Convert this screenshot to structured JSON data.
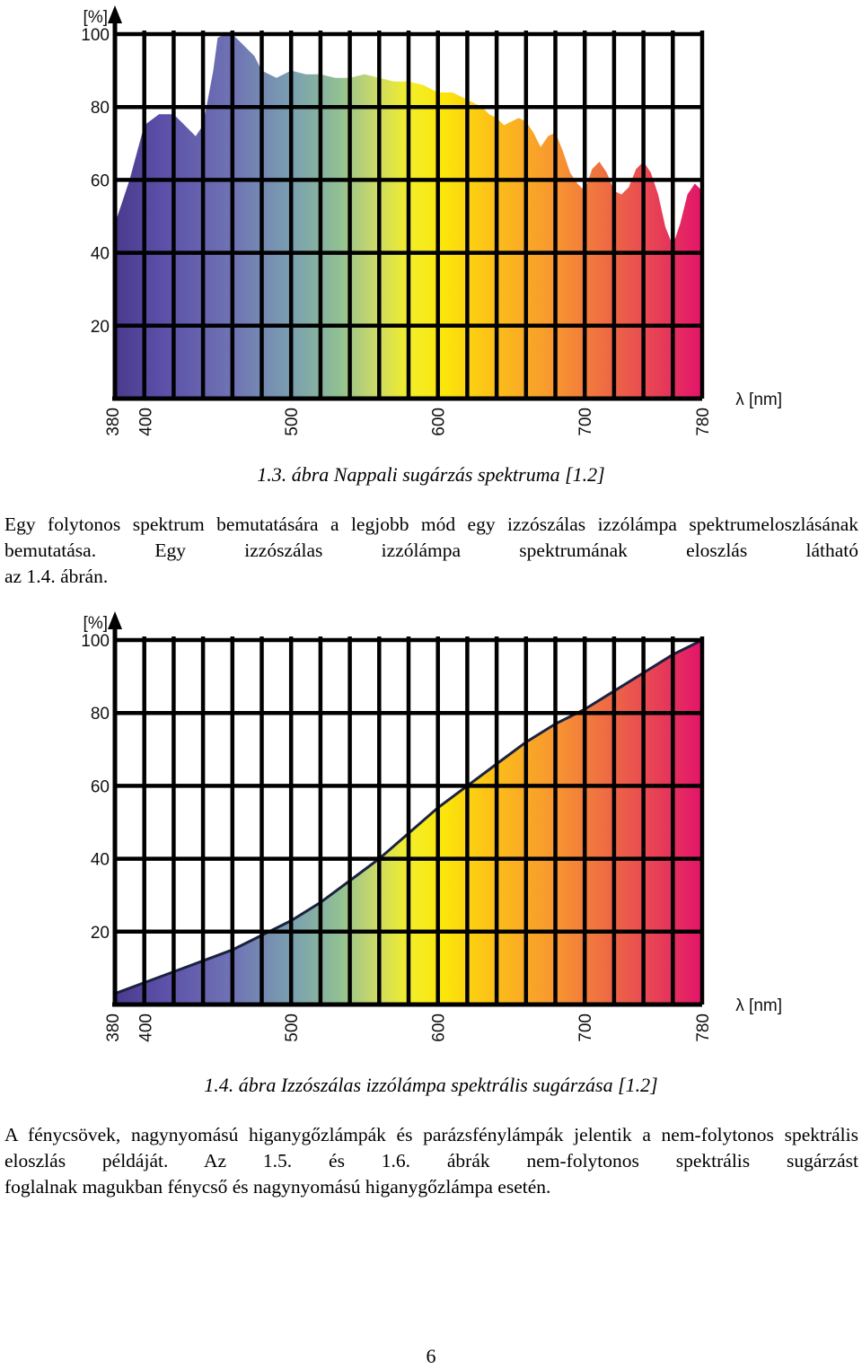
{
  "chart_data": [
    {
      "type": "area",
      "title": "",
      "ylabel": "[%]",
      "xlabel": "λ [nm]",
      "xlim": [
        380,
        780
      ],
      "ylim": [
        0,
        100
      ],
      "x_ticks": [
        "380",
        "400",
        "500",
        "600",
        "700",
        "780"
      ],
      "y_ticks": [
        "20",
        "40",
        "60",
        "80",
        "100"
      ],
      "grid": true,
      "fill": "visible spectrum gradient (violet to red)",
      "x": [
        380,
        385,
        390,
        400,
        410,
        420,
        430,
        435,
        440,
        447,
        450,
        455,
        460,
        465,
        470,
        475,
        480,
        490,
        500,
        510,
        520,
        530,
        540,
        550,
        560,
        570,
        580,
        590,
        600,
        610,
        615,
        620,
        625,
        630,
        635,
        640,
        645,
        650,
        655,
        660,
        665,
        670,
        675,
        680,
        685,
        690,
        695,
        700,
        705,
        710,
        715,
        720,
        725,
        730,
        735,
        740,
        745,
        750,
        755,
        760,
        765,
        770,
        775,
        780
      ],
      "y": [
        48,
        54,
        60,
        75,
        78,
        78,
        74,
        72,
        75,
        90,
        99,
        100,
        100,
        98,
        96,
        94,
        90,
        88,
        90,
        89,
        89,
        88,
        88,
        89,
        88,
        87,
        87,
        86,
        84,
        84,
        83,
        82,
        81,
        80,
        78,
        77,
        75,
        76,
        77,
        76,
        73,
        69,
        72,
        73,
        68,
        62,
        59,
        57,
        63,
        65,
        62,
        57,
        56,
        58,
        63,
        65,
        62,
        56,
        47,
        42,
        48,
        56,
        59,
        57
      ]
    },
    {
      "type": "area",
      "title": "",
      "ylabel": "[%]",
      "xlabel": "λ [nm]",
      "xlim": [
        380,
        780
      ],
      "ylim": [
        0,
        100
      ],
      "x_ticks": [
        "380",
        "400",
        "500",
        "600",
        "700",
        "780"
      ],
      "y_ticks": [
        "20",
        "40",
        "60",
        "80",
        "100"
      ],
      "grid": true,
      "fill": "visible spectrum gradient (violet to red)",
      "x": [
        380,
        400,
        420,
        440,
        460,
        480,
        500,
        520,
        540,
        560,
        580,
        600,
        620,
        640,
        660,
        680,
        700,
        720,
        740,
        760,
        780
      ],
      "y": [
        3,
        6,
        9,
        12,
        15,
        19,
        23,
        28,
        34,
        40,
        47,
        54,
        60,
        66,
        72,
        77,
        81,
        86,
        91,
        96,
        100
      ]
    }
  ],
  "captions": {
    "fig13": "1.3. ábra Nappali sugárzás spektruma [1.2]",
    "fig14": "1.4. ábra Izzószálas izzólámpa spektrális sugárzása [1.2]"
  },
  "paragraphs": {
    "p1_line1": "Egy folytonos spektrum bemutatására a legjobb mód egy izzószálas izzólámpa spektrumeloszlásának bemutatása. Egy izzószálas izzólámpa spektrumának eloszlás látható",
    "p1_line2": "az 1.4. ábrán.",
    "p2_line1": "A fénycsövek, nagynyomású higanygőzlámpák és parázsfénylámpák jelentik a nem-folytonos spektrális eloszlás példáját. Az 1.5. és 1.6. ábrák nem-folytonos spektrális sugárzást",
    "p2_line2": "foglalnak magukban fénycső és nagynyomású higanygőzlámpa esetén."
  },
  "page_number": "6"
}
